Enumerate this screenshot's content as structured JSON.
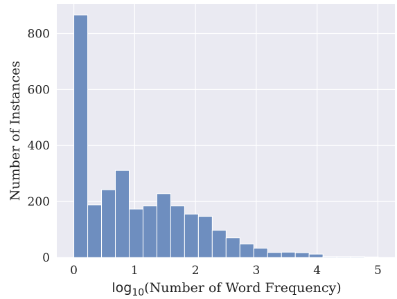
{
  "chart_data": {
    "type": "bar",
    "xlabel_log": "log",
    "xlabel_sub": "10",
    "xlabel_rest": "(Number of Word Frequency)",
    "ylabel": "Number of Instances",
    "xlim": [
      -0.28,
      5.28
    ],
    "ylim": [
      0,
      905
    ],
    "x_ticks": [
      0,
      1,
      2,
      3,
      4,
      5
    ],
    "y_ticks": [
      0,
      200,
      400,
      600,
      800
    ],
    "bin_width": 0.2276,
    "bin_start": 0,
    "values": [
      866,
      188,
      242,
      311,
      173,
      184,
      228,
      184,
      155,
      147,
      97,
      70,
      48,
      33,
      18,
      19,
      17,
      12,
      3,
      3,
      3,
      2
    ],
    "grid": true,
    "bar_color": "#6e8ebf",
    "background_color": "#eaeaf2",
    "grid_color": "#ffffff"
  }
}
